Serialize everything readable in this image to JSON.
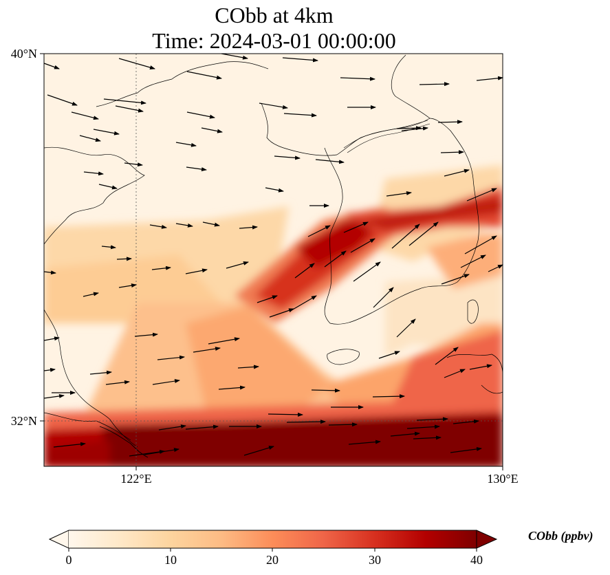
{
  "figure": {
    "title_line1": "CObb at 4km",
    "title_line2": "Time: 2024-03-01 00:00:00"
  },
  "map": {
    "extent_lon": [
      120.8,
      130.0
    ],
    "extent_lat": [
      31.1,
      40.0
    ],
    "lat_ticks": [
      {
        "value": 40,
        "label": "40°N"
      },
      {
        "value": 32,
        "label": "32°N"
      }
    ],
    "lon_ticks": [
      {
        "value": 122,
        "label": "122°E"
      },
      {
        "value": 130,
        "label": "130°E"
      }
    ],
    "gridlines_dotted": [
      {
        "lon": 122
      },
      {
        "lat": 32
      }
    ],
    "vectors": "wind arrows, predominantly westerly to south-westerly"
  },
  "colorbar": {
    "label": "CObb (ppbv)",
    "colormap": "OrRd",
    "min": 0,
    "max": 40,
    "extend": "both",
    "tick_labels": [
      "0",
      "10",
      "20",
      "30",
      "40"
    ],
    "colors": [
      "#fff7ec",
      "#fdd49e",
      "#fc8d59",
      "#d7301f",
      "#7f0000"
    ]
  }
}
